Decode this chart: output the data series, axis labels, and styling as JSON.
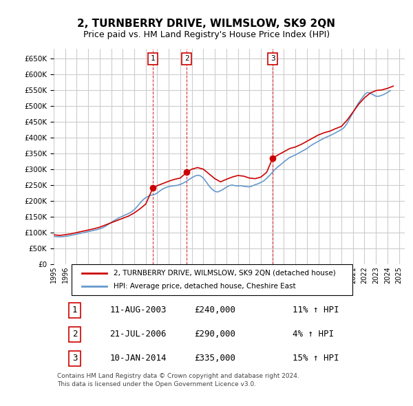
{
  "title": "2, TURNBERRY DRIVE, WILMSLOW, SK9 2QN",
  "subtitle": "Price paid vs. HM Land Registry's House Price Index (HPI)",
  "ylabel_ticks": [
    0,
    50000,
    100000,
    150000,
    200000,
    250000,
    300000,
    350000,
    400000,
    450000,
    500000,
    550000,
    600000,
    650000
  ],
  "ylim": [
    0,
    680000
  ],
  "xlim_start": 1995.0,
  "xlim_end": 2025.5,
  "sales": [
    {
      "year": 2003.61,
      "price": 240000,
      "label": "1"
    },
    {
      "year": 2006.55,
      "price": 290000,
      "label": "2"
    },
    {
      "year": 2014.03,
      "price": 335000,
      "label": "3"
    }
  ],
  "sale_color": "#cc0000",
  "hpi_color": "#6699cc",
  "grid_color": "#cccccc",
  "background_color": "#ffffff",
  "legend_entries": [
    "2, TURNBERRY DRIVE, WILMSLOW, SK9 2QN (detached house)",
    "HPI: Average price, detached house, Cheshire East"
  ],
  "table_rows": [
    {
      "num": "1",
      "date": "11-AUG-2003",
      "price": "£240,000",
      "hpi": "11% ↑ HPI"
    },
    {
      "num": "2",
      "date": "21-JUL-2006",
      "price": "£290,000",
      "hpi": "4% ↑ HPI"
    },
    {
      "num": "3",
      "date": "10-JAN-2014",
      "price": "£335,000",
      "hpi": "15% ↑ HPI"
    }
  ],
  "footer": "Contains HM Land Registry data © Crown copyright and database right 2024.\nThis data is licensed under the Open Government Licence v3.0.",
  "hpi_data_years": [
    1995.0,
    1995.25,
    1995.5,
    1995.75,
    1996.0,
    1996.25,
    1996.5,
    1996.75,
    1997.0,
    1997.25,
    1997.5,
    1997.75,
    1998.0,
    1998.25,
    1998.5,
    1998.75,
    1999.0,
    1999.25,
    1999.5,
    1999.75,
    2000.0,
    2000.25,
    2000.5,
    2000.75,
    2001.0,
    2001.25,
    2001.5,
    2001.75,
    2002.0,
    2002.25,
    2002.5,
    2002.75,
    2003.0,
    2003.25,
    2003.5,
    2003.75,
    2004.0,
    2004.25,
    2004.5,
    2004.75,
    2005.0,
    2005.25,
    2005.5,
    2005.75,
    2006.0,
    2006.25,
    2006.5,
    2006.75,
    2007.0,
    2007.25,
    2007.5,
    2007.75,
    2008.0,
    2008.25,
    2008.5,
    2008.75,
    2009.0,
    2009.25,
    2009.5,
    2009.75,
    2010.0,
    2010.25,
    2010.5,
    2010.75,
    2011.0,
    2011.25,
    2011.5,
    2011.75,
    2012.0,
    2012.25,
    2012.5,
    2012.75,
    2013.0,
    2013.25,
    2013.5,
    2013.75,
    2014.0,
    2014.25,
    2014.5,
    2014.75,
    2015.0,
    2015.25,
    2015.5,
    2015.75,
    2016.0,
    2016.25,
    2016.5,
    2016.75,
    2017.0,
    2017.25,
    2017.5,
    2017.75,
    2018.0,
    2018.25,
    2018.5,
    2018.75,
    2019.0,
    2019.25,
    2019.5,
    2019.75,
    2020.0,
    2020.25,
    2020.5,
    2020.75,
    2021.0,
    2021.25,
    2021.5,
    2021.75,
    2022.0,
    2022.25,
    2022.5,
    2022.75,
    2023.0,
    2023.25,
    2023.5,
    2023.75,
    2024.0,
    2024.25
  ],
  "hpi_values": [
    88000,
    87000,
    86500,
    87000,
    88000,
    89000,
    91000,
    93000,
    95000,
    97000,
    99000,
    101000,
    103000,
    105000,
    107000,
    109000,
    112000,
    115000,
    120000,
    126000,
    132000,
    138000,
    143000,
    148000,
    152000,
    156000,
    160000,
    165000,
    172000,
    182000,
    193000,
    203000,
    210000,
    215000,
    218000,
    220000,
    225000,
    232000,
    238000,
    242000,
    245000,
    247000,
    248000,
    249000,
    252000,
    256000,
    261000,
    267000,
    273000,
    278000,
    281000,
    279000,
    272000,
    260000,
    247000,
    237000,
    230000,
    228000,
    232000,
    237000,
    243000,
    248000,
    250000,
    248000,
    247000,
    248000,
    246000,
    245000,
    244000,
    247000,
    251000,
    254000,
    258000,
    263000,
    271000,
    280000,
    290000,
    300000,
    308000,
    315000,
    323000,
    330000,
    337000,
    341000,
    345000,
    350000,
    355000,
    360000,
    365000,
    372000,
    378000,
    383000,
    388000,
    393000,
    398000,
    402000,
    406000,
    410000,
    415000,
    420000,
    425000,
    432000,
    445000,
    462000,
    478000,
    495000,
    510000,
    522000,
    535000,
    542000,
    540000,
    535000,
    530000,
    530000,
    533000,
    537000,
    542000,
    548000
  ],
  "sale_line_years": [
    1995.0,
    1995.5,
    1996.0,
    1996.5,
    1997.0,
    1997.5,
    1998.0,
    1998.5,
    1999.0,
    1999.5,
    2000.0,
    2000.5,
    2001.0,
    2001.5,
    2002.0,
    2002.5,
    2003.0,
    2003.61,
    2004.0,
    2004.5,
    2005.0,
    2005.5,
    2006.0,
    2006.55,
    2007.0,
    2007.5,
    2008.0,
    2008.5,
    2009.0,
    2009.5,
    2010.0,
    2010.5,
    2011.0,
    2011.5,
    2012.0,
    2012.5,
    2013.0,
    2013.5,
    2014.03,
    2014.5,
    2015.0,
    2015.5,
    2016.0,
    2016.5,
    2017.0,
    2017.5,
    2018.0,
    2018.5,
    2019.0,
    2019.5,
    2020.0,
    2020.5,
    2021.0,
    2021.5,
    2022.0,
    2022.5,
    2023.0,
    2023.5,
    2024.0,
    2024.5
  ],
  "sale_line_values": [
    93000,
    91000,
    93000,
    96000,
    100000,
    104000,
    108000,
    112000,
    117000,
    124000,
    131000,
    138000,
    145000,
    152000,
    162000,
    175000,
    190000,
    240000,
    248000,
    255000,
    262000,
    268000,
    272000,
    290000,
    300000,
    305000,
    300000,
    285000,
    270000,
    260000,
    268000,
    275000,
    280000,
    278000,
    272000,
    270000,
    275000,
    290000,
    335000,
    345000,
    355000,
    365000,
    370000,
    378000,
    388000,
    398000,
    408000,
    415000,
    420000,
    428000,
    435000,
    455000,
    480000,
    505000,
    525000,
    540000,
    548000,
    550000,
    555000,
    562000
  ]
}
